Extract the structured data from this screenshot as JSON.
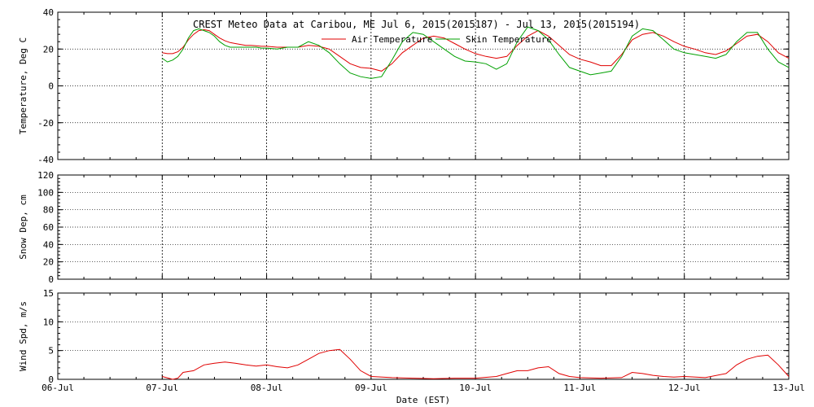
{
  "chart_data": {
    "title": "CREST Meteo Data at Caribou, ME   Jul  6, 2015(2015187) - Jul 13, 2015(2015194)",
    "xlabel": "Date (EST)",
    "x_tick_labels": [
      "06-Jul",
      "07-Jul",
      "08-Jul",
      "09-Jul",
      "10-Jul",
      "11-Jul",
      "12-Jul",
      "13-Jul"
    ],
    "x_unit": "days since 06-Jul",
    "xlim": [
      0,
      7
    ],
    "panels": [
      {
        "type": "line",
        "ylabel": "Temperature, Deg C",
        "ylim": [
          -40,
          40
        ],
        "yticks": [
          -40,
          -20,
          0,
          20,
          40
        ],
        "grid": true,
        "legend": "top-center",
        "series": [
          {
            "name": "Air Temperature",
            "color": "#e00000",
            "x": [
              1.0,
              1.05,
              1.1,
              1.15,
              1.2,
              1.25,
              1.3,
              1.35,
              1.4,
              1.45,
              1.5,
              1.55,
              1.6,
              1.65,
              1.7,
              1.75,
              1.8,
              1.85,
              1.9,
              1.95,
              2.0,
              2.1,
              2.2,
              2.3,
              2.4,
              2.5,
              2.6,
              2.7,
              2.8,
              2.9,
              3.0,
              3.1,
              3.2,
              3.3,
              3.4,
              3.5,
              3.6,
              3.7,
              3.8,
              3.9,
              4.0,
              4.1,
              4.2,
              4.3,
              4.4,
              4.5,
              4.6,
              4.7,
              4.8,
              4.9,
              5.0,
              5.1,
              5.2,
              5.3,
              5.4,
              5.5,
              5.6,
              5.7,
              5.8,
              5.9,
              6.0,
              6.1,
              6.2,
              6.3,
              6.4,
              6.5,
              6.6,
              6.7,
              6.8,
              6.9,
              7.0
            ],
            "y": [
              18,
              17.5,
              17.5,
              18.5,
              21,
              25,
              28,
              30,
              30.5,
              30,
              28,
              26,
              24.5,
              23.5,
              23,
              22.5,
              22,
              22,
              21.8,
              21.5,
              21.5,
              21,
              21,
              21,
              22,
              21.5,
              20,
              16,
              12,
              10,
              9.5,
              8,
              12,
              18,
              22,
              26,
              27,
              26,
              23,
              20,
              17.5,
              16,
              15,
              16,
              22,
              27,
              30,
              27,
              22,
              17,
              14.5,
              13,
              11,
              11,
              17,
              25,
              28,
              29,
              27,
              24,
              21.5,
              20,
              18,
              17,
              19,
              23,
              27,
              28,
              24,
              18,
              15
            ]
          },
          {
            "name": "Skin Temperature",
            "color": "#00a000",
            "x": [
              1.0,
              1.05,
              1.1,
              1.15,
              1.2,
              1.25,
              1.3,
              1.35,
              1.4,
              1.45,
              1.5,
              1.55,
              1.6,
              1.65,
              1.7,
              1.75,
              1.8,
              1.85,
              1.9,
              1.95,
              2.0,
              2.1,
              2.2,
              2.3,
              2.4,
              2.5,
              2.6,
              2.7,
              2.8,
              2.9,
              3.0,
              3.1,
              3.2,
              3.3,
              3.4,
              3.5,
              3.6,
              3.7,
              3.8,
              3.9,
              4.0,
              4.1,
              4.2,
              4.3,
              4.4,
              4.5,
              4.6,
              4.7,
              4.8,
              4.9,
              5.0,
              5.1,
              5.2,
              5.3,
              5.4,
              5.5,
              5.6,
              5.7,
              5.8,
              5.9,
              6.0,
              6.1,
              6.2,
              6.3,
              6.4,
              6.5,
              6.6,
              6.7,
              6.8,
              6.9,
              7.0
            ],
            "y": [
              15,
              13,
              14,
              16,
              20,
              26,
              30,
              31,
              30,
              29,
              27,
              24,
              22,
              21,
              21,
              21,
              21,
              21,
              21,
              20.5,
              20.5,
              20,
              21,
              21,
              24,
              22,
              18,
              12,
              7,
              5,
              4,
              5,
              14,
              24,
              29,
              28,
              24,
              20,
              16,
              13.5,
              13,
              12,
              9,
              12,
              24,
              32,
              30,
              25,
              17,
              10,
              8,
              6,
              7,
              8,
              16,
              27,
              31,
              30,
              25,
              20,
              18,
              17,
              16,
              15,
              17,
              24,
              29,
              29,
              20,
              13,
              10
            ]
          }
        ]
      },
      {
        "type": "line",
        "ylabel": "Snow Dep, cm",
        "ylim": [
          0,
          120
        ],
        "yticks": [
          0,
          20,
          40,
          60,
          80,
          100,
          120
        ],
        "grid": true,
        "series": []
      },
      {
        "type": "line",
        "ylabel": "Wind Spd, m/s",
        "ylim": [
          0,
          15
        ],
        "yticks": [
          0,
          5,
          10,
          15
        ],
        "grid": true,
        "series": [
          {
            "name": "Wind Speed",
            "color": "#e00000",
            "x": [
              1.0,
              1.1,
              1.15,
              1.2,
              1.3,
              1.4,
              1.5,
              1.6,
              1.7,
              1.8,
              1.9,
              2.0,
              2.1,
              2.2,
              2.3,
              2.4,
              2.5,
              2.6,
              2.7,
              2.8,
              2.9,
              3.0,
              3.2,
              3.4,
              3.6,
              3.8,
              4.0,
              4.2,
              4.3,
              4.4,
              4.5,
              4.6,
              4.7,
              4.8,
              4.9,
              5.0,
              5.2,
              5.4,
              5.5,
              5.6,
              5.7,
              5.8,
              5.9,
              6.0,
              6.2,
              6.4,
              6.5,
              6.6,
              6.7,
              6.8,
              6.9,
              7.0
            ],
            "y": [
              0.5,
              0,
              0.2,
              1.2,
              1.5,
              2.5,
              2.8,
              3.0,
              2.8,
              2.5,
              2.3,
              2.5,
              2.2,
              2.0,
              2.5,
              3.5,
              4.5,
              5.0,
              5.2,
              3.5,
              1.5,
              0.5,
              0.3,
              0.2,
              0.1,
              0.2,
              0.2,
              0.5,
              1.0,
              1.5,
              1.5,
              2.0,
              2.2,
              1.0,
              0.5,
              0.3,
              0.2,
              0.3,
              1.2,
              1.0,
              0.7,
              0.5,
              0.4,
              0.5,
              0.3,
              1.0,
              2.5,
              3.5,
              4.0,
              4.2,
              2.5,
              0.5
            ]
          }
        ]
      }
    ]
  }
}
